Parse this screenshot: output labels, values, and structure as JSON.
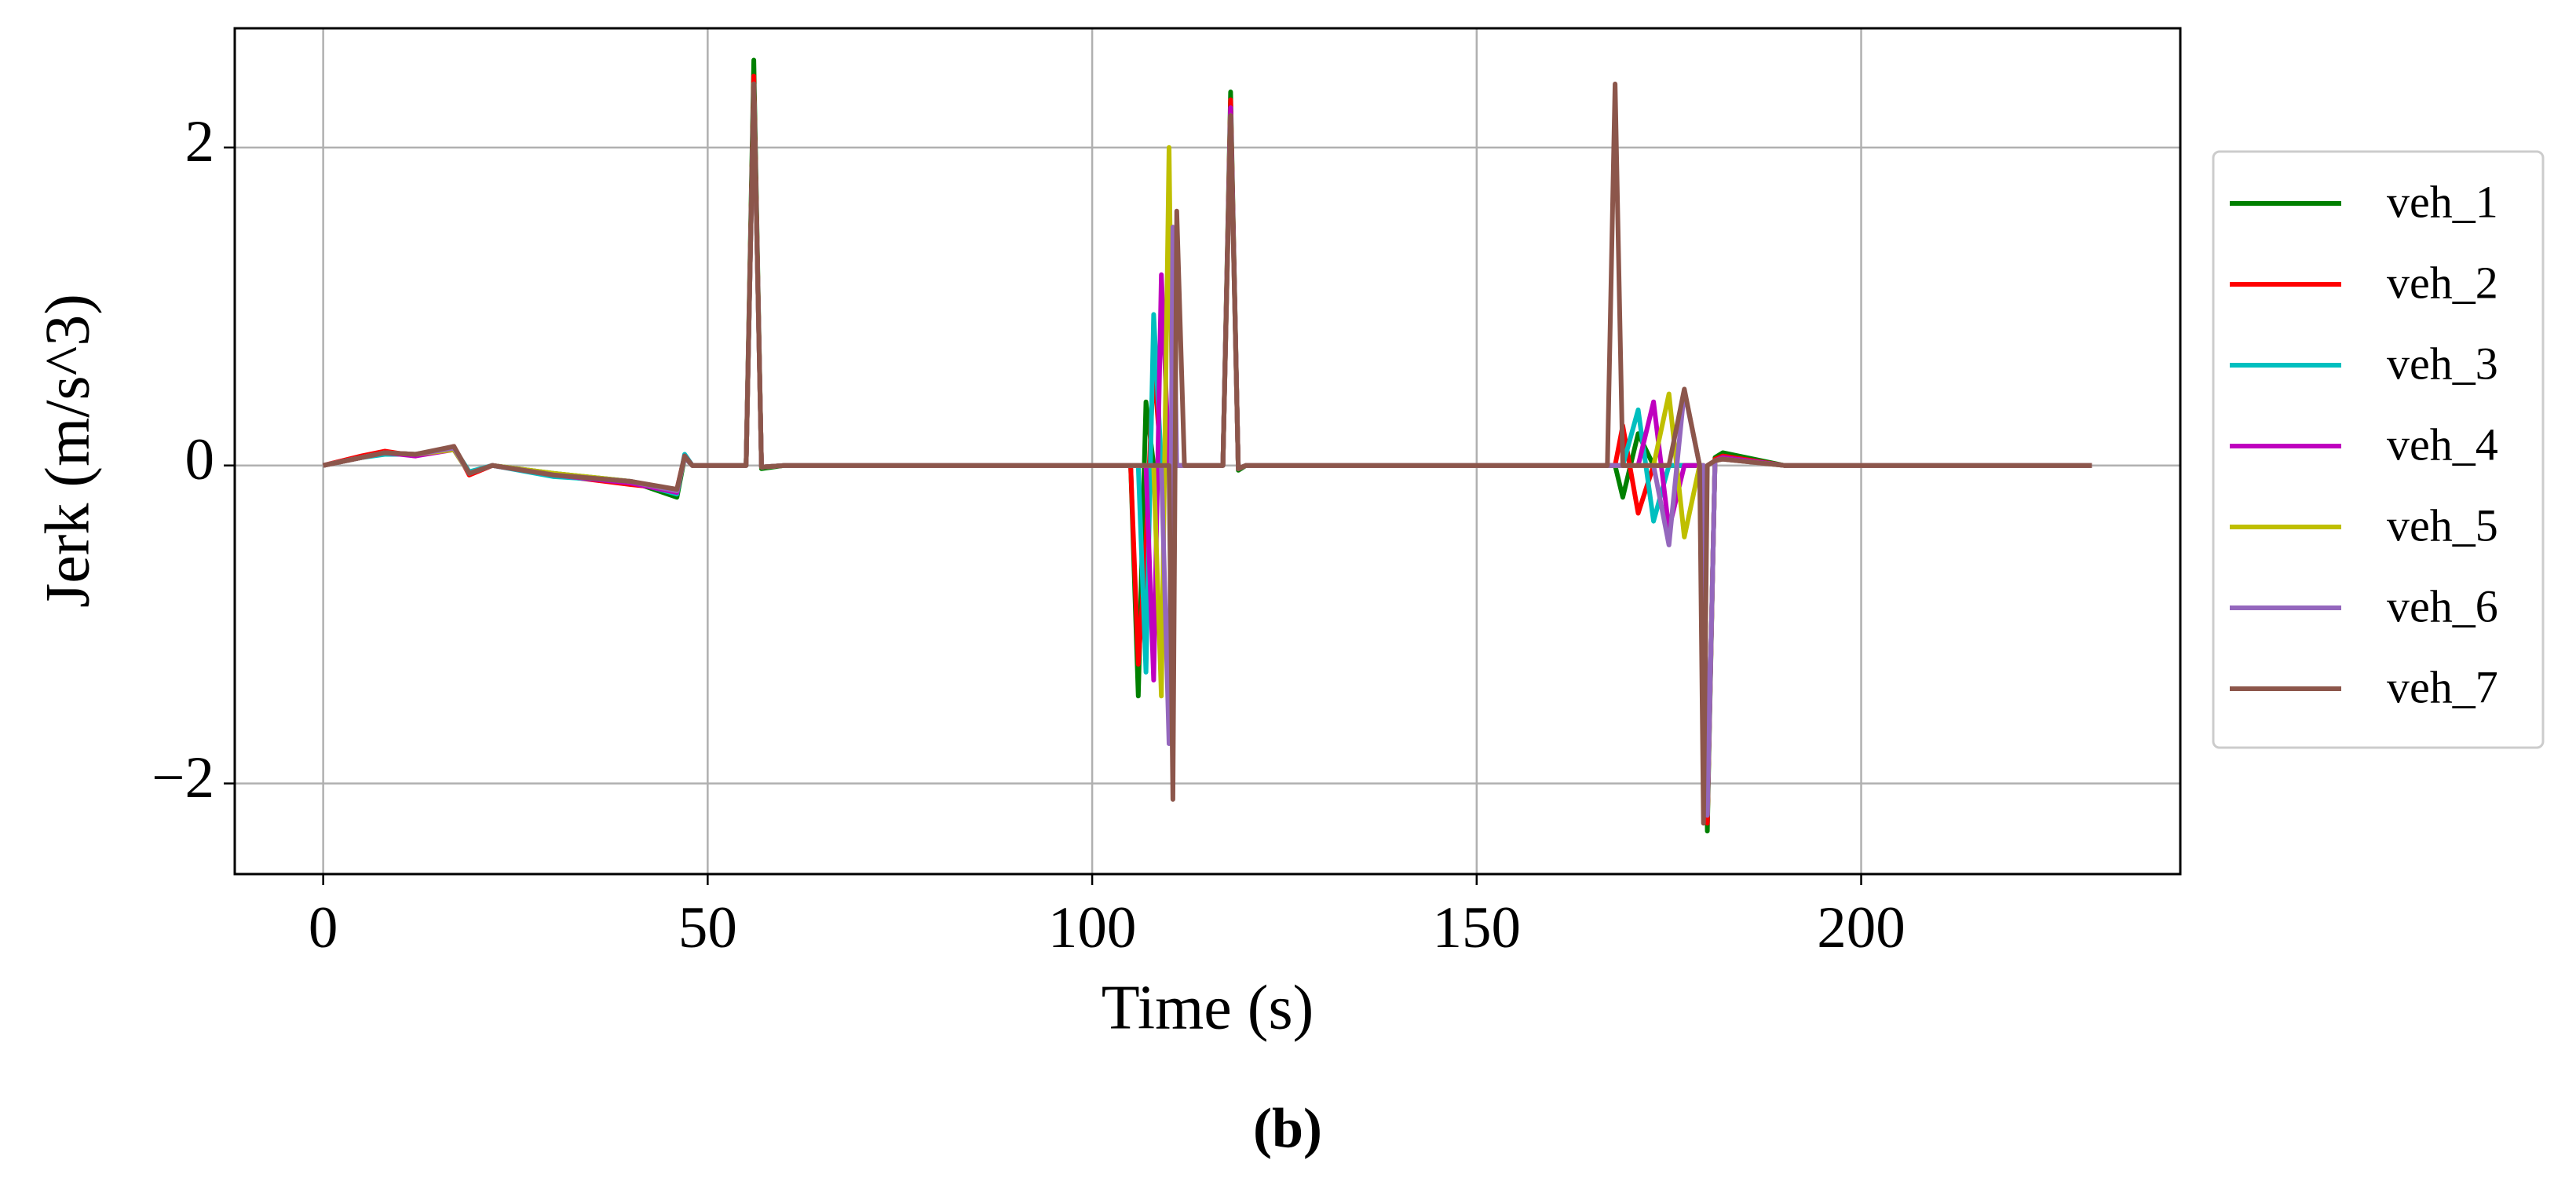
{
  "chart_data": {
    "type": "line",
    "xlabel": "Time (s)",
    "ylabel": "Jerk (m/s^3)",
    "caption": "(b)",
    "xlim": [
      -11.5,
      241.5
    ],
    "ylim": [
      -2.57,
      2.75
    ],
    "xticks": [
      0,
      50,
      100,
      150,
      200
    ],
    "yticks": [
      {
        "value": -2,
        "label": "−2"
      },
      0,
      2
    ],
    "grid": true,
    "legend": "outside-right",
    "x": [
      0,
      5,
      8,
      12,
      17,
      19,
      22,
      30,
      40,
      46,
      47,
      48,
      50,
      55,
      56,
      57,
      60,
      105,
      106,
      107,
      108,
      109,
      110,
      110.5,
      111,
      112,
      117,
      118,
      119,
      120,
      167,
      168,
      169,
      171,
      173,
      175,
      177,
      179,
      179.5,
      180,
      181,
      182,
      190,
      230
    ],
    "series": [
      {
        "name": "veh_1",
        "color": "#008000",
        "values": [
          0,
          0.05,
          0.08,
          0.07,
          0.1,
          -0.05,
          0,
          -0.05,
          -0.1,
          -0.2,
          0.05,
          0,
          0,
          0,
          2.55,
          -0.02,
          0,
          0,
          -1.45,
          0.4,
          0,
          0,
          0,
          0,
          0,
          0,
          0,
          2.35,
          -0.03,
          0,
          0,
          0,
          -0.2,
          0.2,
          0,
          0,
          0,
          0,
          0,
          -2.3,
          0.05,
          0.08,
          0,
          0
        ]
      },
      {
        "name": "veh_2",
        "color": "#ff0000",
        "values": [
          0,
          0.06,
          0.09,
          0.06,
          0.12,
          -0.06,
          0,
          -0.06,
          -0.12,
          -0.15,
          0.06,
          0,
          0,
          0,
          2.45,
          -0.01,
          0,
          0,
          -1.25,
          -0.5,
          0.65,
          0,
          0,
          0,
          0,
          0,
          0,
          2.3,
          -0.02,
          0,
          0,
          0,
          0.25,
          -0.3,
          0,
          0,
          0,
          0,
          0,
          -2.25,
          0.04,
          0.06,
          0,
          0
        ]
      },
      {
        "name": "veh_3",
        "color": "#00bfbf",
        "values": [
          0,
          0.05,
          0.07,
          0.07,
          0.11,
          -0.04,
          0,
          -0.07,
          -0.1,
          -0.18,
          0.07,
          0,
          0,
          0,
          2.4,
          -0.01,
          0,
          0,
          0,
          -1.3,
          0.95,
          0,
          0,
          0,
          0,
          0,
          0,
          2.25,
          -0.02,
          0,
          0,
          0,
          0,
          0.35,
          -0.35,
          0,
          0,
          0,
          0,
          -2.2,
          0.03,
          0.05,
          0,
          0
        ]
      },
      {
        "name": "veh_4",
        "color": "#bf00bf",
        "values": [
          0,
          0.05,
          0.08,
          0.06,
          0.1,
          -0.05,
          0,
          -0.06,
          -0.11,
          -0.17,
          0.06,
          0,
          0,
          0,
          2.4,
          -0.01,
          0,
          0,
          0,
          0,
          -1.35,
          1.2,
          0,
          0,
          0,
          0,
          0,
          2.25,
          -0.02,
          0,
          0,
          0,
          0,
          0,
          0.4,
          -0.4,
          0,
          0,
          0,
          -2.2,
          0.03,
          0.05,
          0,
          0
        ]
      },
      {
        "name": "veh_5",
        "color": "#bfbf00",
        "values": [
          0,
          0.05,
          0.08,
          0.07,
          0.1,
          -0.05,
          0,
          -0.05,
          -0.1,
          -0.16,
          0.05,
          0,
          0,
          0,
          2.4,
          -0.01,
          0,
          0,
          0,
          0,
          0,
          -1.45,
          2.0,
          0,
          0,
          0,
          0,
          2.2,
          -0.02,
          0,
          0,
          0,
          0,
          0,
          0,
          0.45,
          -0.45,
          0,
          0,
          -2.2,
          0.03,
          0.04,
          0,
          0
        ]
      },
      {
        "name": "veh_6",
        "color": "#9467bd",
        "values": [
          0,
          0.05,
          0.08,
          0.07,
          0.11,
          -0.05,
          0,
          -0.06,
          -0.1,
          -0.16,
          0.05,
          0,
          0,
          0,
          2.4,
          -0.01,
          0,
          0,
          0,
          0,
          0,
          0,
          -1.75,
          1.5,
          0,
          0,
          0,
          2.2,
          -0.02,
          0,
          0,
          0,
          0,
          0,
          0,
          -0.5,
          0.47,
          0,
          0,
          -2.2,
          0.03,
          0.04,
          0,
          0
        ]
      },
      {
        "name": "veh_7",
        "color": "#8c564b",
        "values": [
          0,
          0.05,
          0.08,
          0.07,
          0.12,
          -0.05,
          0,
          -0.06,
          -0.1,
          -0.15,
          0.06,
          0,
          0,
          0,
          2.4,
          -0.01,
          0,
          0,
          0,
          0,
          0,
          0,
          0,
          -2.1,
          1.6,
          0,
          0,
          2.2,
          -0.02,
          0,
          0,
          2.4,
          0,
          0,
          0,
          0,
          0.48,
          0,
          -2.25,
          0,
          0.03,
          0.04,
          0,
          0
        ]
      }
    ]
  }
}
